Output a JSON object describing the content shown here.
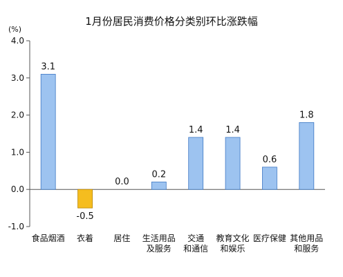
{
  "chart_data": {
    "type": "bar",
    "title": "1月份居民消费价格分类别环比涨跌幅",
    "unit_label": "(%)",
    "ylim": [
      -1.0,
      4.0
    ],
    "yticks": [
      "4.0",
      "3.0",
      "2.0",
      "1.0",
      "0.0",
      "-1.0"
    ],
    "ytick_values": [
      4.0,
      3.0,
      2.0,
      1.0,
      0.0,
      -1.0
    ],
    "grid": false,
    "categories": [
      [
        "食品烟酒"
      ],
      [
        "衣着"
      ],
      [
        "居住"
      ],
      [
        "生活用品",
        "及服务"
      ],
      [
        "交通",
        "和通信"
      ],
      [
        "教育文化",
        "和娱乐"
      ],
      [
        "医疗保健"
      ],
      [
        "其他用品",
        "和服务"
      ]
    ],
    "values": [
      3.1,
      -0.5,
      0.0,
      0.2,
      1.4,
      1.4,
      0.6,
      1.8
    ],
    "value_labels": [
      "3.1",
      "-0.5",
      "0.0",
      "0.2",
      "1.4",
      "1.4",
      "0.6",
      "1.8"
    ],
    "colors": {
      "positive_fill": "#9dc3f0",
      "positive_stroke": "#3e78c4",
      "negative_fill": "#f5bd1f",
      "negative_stroke": "#b88400",
      "axis": "#555555"
    }
  }
}
